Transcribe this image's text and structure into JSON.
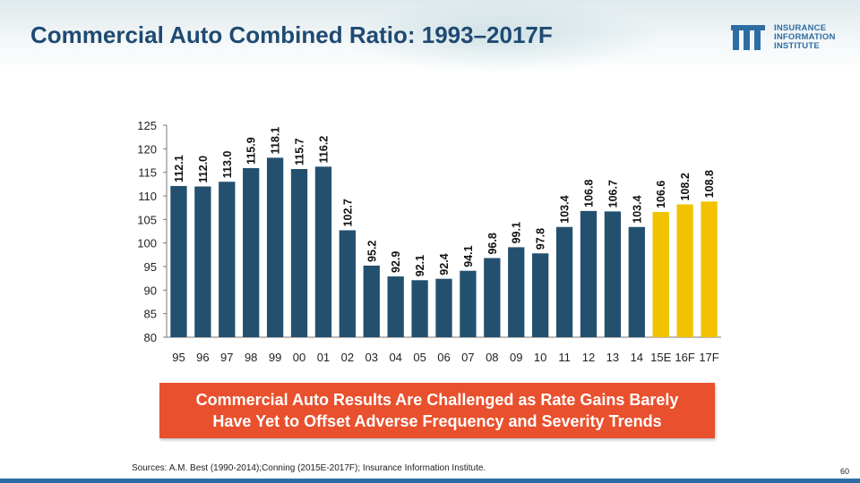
{
  "header": {
    "title": "Commercial Auto Combined Ratio: 1993–2017F"
  },
  "logo": {
    "line1": "INSURANCE",
    "line2": "INFORMATION",
    "line3": "INSTITUTE",
    "icon": "iii-logo-icon"
  },
  "chart_data": {
    "type": "bar",
    "title": "",
    "xlabel": "",
    "ylabel": "",
    "ylim": [
      80,
      125
    ],
    "yticks": [
      80,
      85,
      90,
      95,
      100,
      105,
      110,
      115,
      120,
      125
    ],
    "categories": [
      "95",
      "96",
      "97",
      "98",
      "99",
      "00",
      "01",
      "02",
      "03",
      "04",
      "05",
      "06",
      "07",
      "08",
      "09",
      "10",
      "11",
      "12",
      "13",
      "14",
      "15E",
      "16F",
      "17F"
    ],
    "values": [
      112.1,
      112.0,
      113.0,
      115.9,
      118.1,
      115.7,
      116.2,
      102.7,
      95.2,
      92.9,
      92.1,
      92.4,
      94.1,
      96.8,
      99.1,
      97.8,
      103.4,
      106.8,
      106.7,
      103.4,
      106.6,
      108.2,
      108.8
    ],
    "labels": [
      "112.1",
      "112.0",
      "113.0",
      "115.9",
      "118.1",
      "115.7",
      "116.2",
      "102.7",
      "95.2",
      "92.9",
      "92.1",
      "92.4",
      "94.1",
      "96.8",
      "99.1",
      "97.8",
      "103.4",
      "106.8",
      "106.7",
      "103.4",
      "106.6",
      "108.2",
      "108.8"
    ],
    "bar_types": [
      "actual",
      "actual",
      "actual",
      "actual",
      "actual",
      "actual",
      "actual",
      "actual",
      "actual",
      "actual",
      "actual",
      "actual",
      "actual",
      "actual",
      "actual",
      "actual",
      "actual",
      "actual",
      "actual",
      "actual",
      "forecast",
      "forecast",
      "forecast"
    ],
    "colors": {
      "actual": "#24506f",
      "forecast": "#f2c200"
    }
  },
  "callout": {
    "line1": "Commercial Auto Results Are Challenged as Rate Gains Barely",
    "line2": "Have Yet to Offset Adverse Frequency and Severity Trends"
  },
  "footer": {
    "source": "Sources: A.M. Best (1990-2014);Conning (2015E-2017F); Insurance Information Institute.",
    "page": "60"
  }
}
